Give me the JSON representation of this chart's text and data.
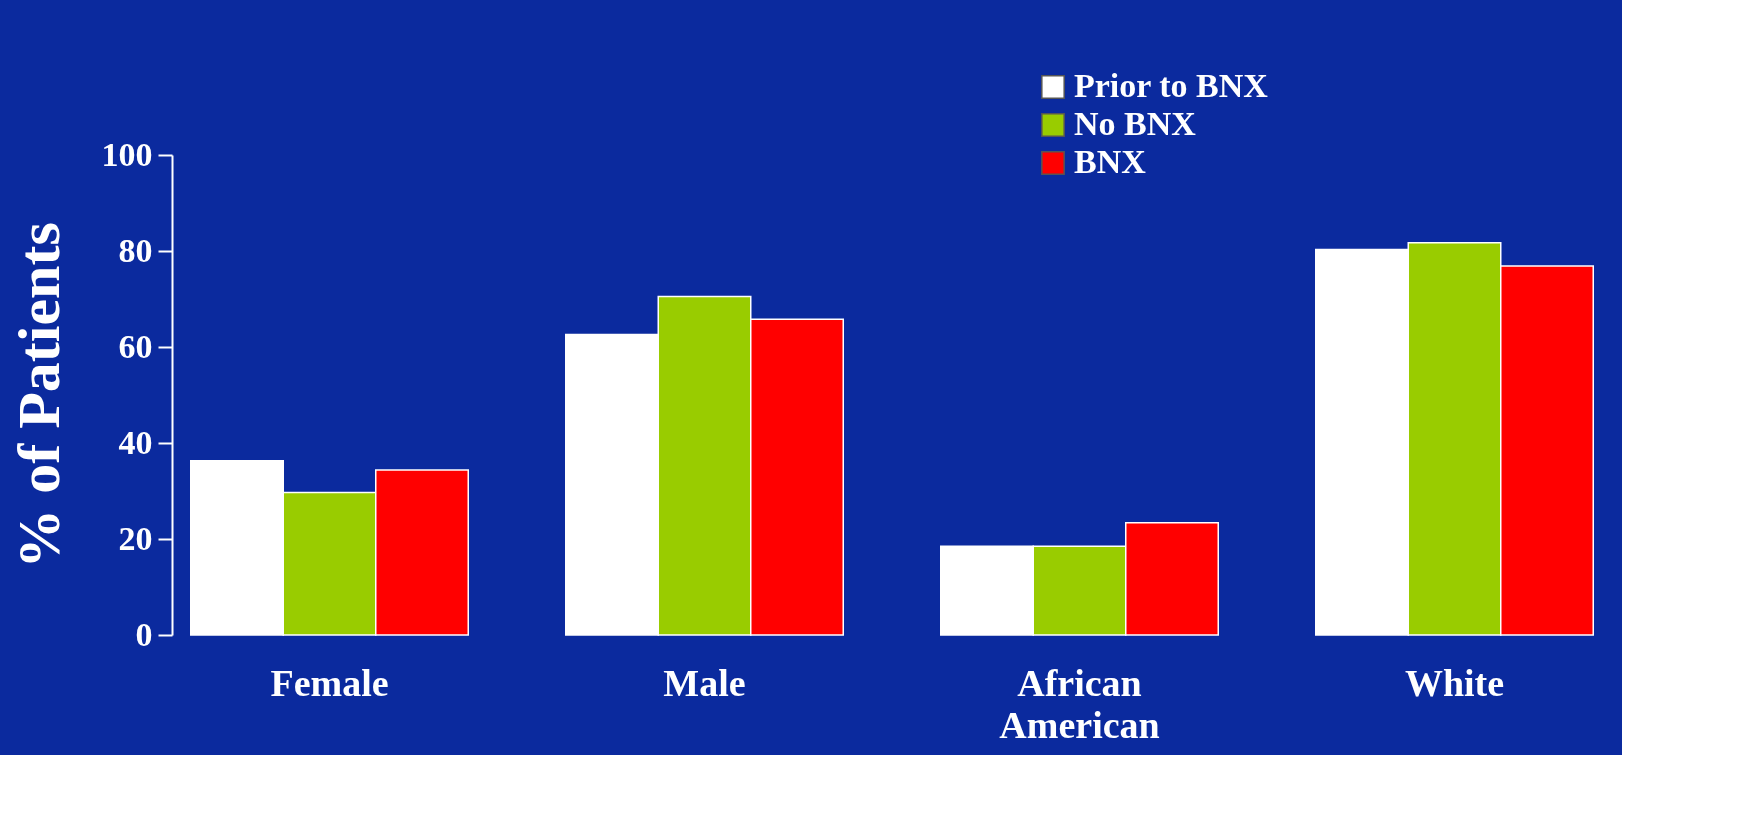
{
  "chart_data": {
    "type": "bar",
    "ylabel": "% of Patients",
    "categories": [
      "Female",
      "Male",
      "African American",
      "White"
    ],
    "series": [
      {
        "name": "Prior to BNX",
        "color": "#ffffff",
        "values": [
          36.3,
          62.6,
          18.5,
          80.3
        ]
      },
      {
        "name": "No BNX",
        "color": "#99cc00",
        "values": [
          29.7,
          70.5,
          18.5,
          81.7
        ]
      },
      {
        "name": "BNX",
        "color": "#ff0000",
        "values": [
          34.4,
          65.8,
          23.4,
          76.9
        ]
      }
    ],
    "ylim": [
      0,
      100
    ],
    "yticks": [
      0,
      20,
      40,
      60,
      80,
      100
    ],
    "grid": false,
    "legend": "top"
  }
}
